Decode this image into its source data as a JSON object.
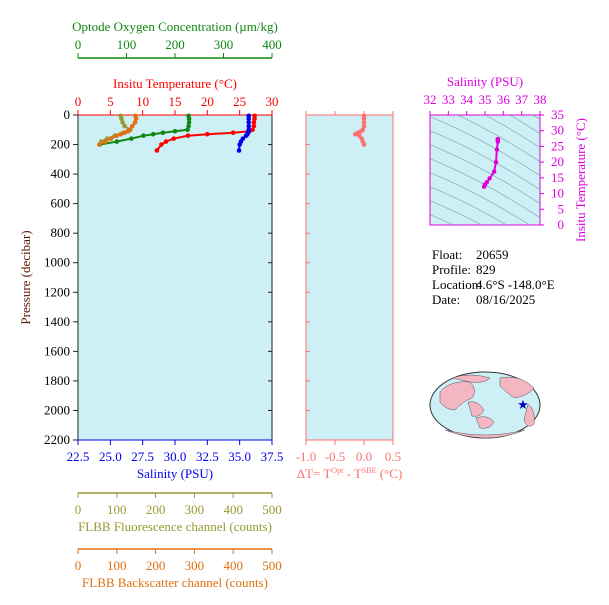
{
  "chart_data": [
    {
      "type": "profile",
      "y_label": "Pressure (decibar)",
      "ylim": [
        0,
        2200
      ],
      "yticks": [
        0,
        200,
        400,
        600,
        800,
        1000,
        1200,
        1400,
        1600,
        1800,
        2000,
        2200
      ],
      "y_inverted": true,
      "pressure": [
        5,
        25,
        50,
        75,
        100,
        110,
        120,
        130,
        140,
        160,
        180,
        200,
        240
      ],
      "axes": [
        {
          "title": "Insitu Temperature (°C)",
          "color": "#ff0000",
          "xlim": [
            0,
            30
          ],
          "xticks": [
            0,
            5,
            10,
            15,
            20,
            25,
            30
          ],
          "values": [
            27.3,
            27.3,
            27.2,
            27.2,
            27.0,
            26.5,
            24,
            20,
            17,
            14.8,
            13.6,
            12.9,
            12.2
          ]
        },
        {
          "title": "Salinity (PSU)",
          "color": "#0000ee",
          "xlim": [
            22.5,
            37.5
          ],
          "xticks": [
            22.5,
            {
              "value": 25,
              "label": "25.0"
            },
            27.5,
            {
              "value": 30,
              "label": "30.0"
            },
            32.5,
            {
              "value": 35,
              "label": "35.0"
            },
            37.5
          ],
          "values": [
            35.7,
            35.7,
            35.7,
            35.7,
            35.7,
            35.7,
            35.65,
            35.6,
            35.5,
            35.25,
            35.1,
            35.0,
            34.95
          ]
        },
        {
          "title": "Optode Oxygen Concentration (µm/kg)",
          "color": "#118811",
          "xlim": [
            0,
            400
          ],
          "xticks": [
            0,
            100,
            200,
            300,
            400
          ],
          "values": [
            228,
            229,
            229,
            228,
            226,
            200,
            175,
            155,
            135,
            110,
            80,
            45,
            null
          ]
        },
        {
          "title": "FLBB Fluorescence channel (counts)",
          "color": "#999933",
          "xlim": [
            0,
            500
          ],
          "xticks": [
            0,
            100,
            200,
            300,
            400,
            500
          ],
          "values": [
            110,
            112,
            115,
            120,
            135,
            130,
            120,
            110,
            95,
            75,
            60,
            null,
            null
          ]
        },
        {
          "title": "FLBB Backscatter channel (counts)",
          "color": "#e07010",
          "xlim": [
            0,
            500
          ],
          "xticks": [
            0,
            100,
            200,
            300,
            400,
            500
          ],
          "values": [
            148,
            150,
            147,
            140,
            132,
            128,
            118,
            110,
            100,
            85,
            70,
            55,
            null
          ]
        }
      ]
    },
    {
      "type": "delta",
      "x_label": [
        "ΔT= T",
        "Opt",
        " - T",
        "SBE",
        " (°C)"
      ],
      "color": "#ff7070",
      "xlim": [
        -1.0,
        0.5
      ],
      "xticks": [
        {
          "value": -1,
          "label": "-1.0"
        },
        -0.5,
        {
          "value": 0,
          "label": "0.0"
        },
        0.5
      ],
      "values": [
        0.0,
        0.0,
        0.0,
        0.0,
        -0.02,
        -0.05,
        -0.1,
        -0.15,
        -0.08,
        -0.04,
        -0.02,
        0.0,
        null
      ]
    },
    {
      "type": "ts",
      "x_label": "Salinity (PSU)",
      "y_label": "Insitu Temperature (°C)",
      "color": "#dd00dd",
      "xlim": [
        32,
        38
      ],
      "xticks": [
        32,
        33,
        34,
        35,
        36,
        37,
        38
      ],
      "ylim": [
        0,
        35
      ],
      "yticks": [
        0,
        5,
        10,
        15,
        20,
        25,
        30,
        35
      ]
    }
  ],
  "info": [
    {
      "label": "Float:",
      "value": "20659"
    },
    {
      "label": "Profile:",
      "value": "829"
    },
    {
      "label": "Location:",
      "value": "4.6°S  -148.0°E"
    },
    {
      "label": "Date:",
      "value": "08/16/2025"
    }
  ]
}
